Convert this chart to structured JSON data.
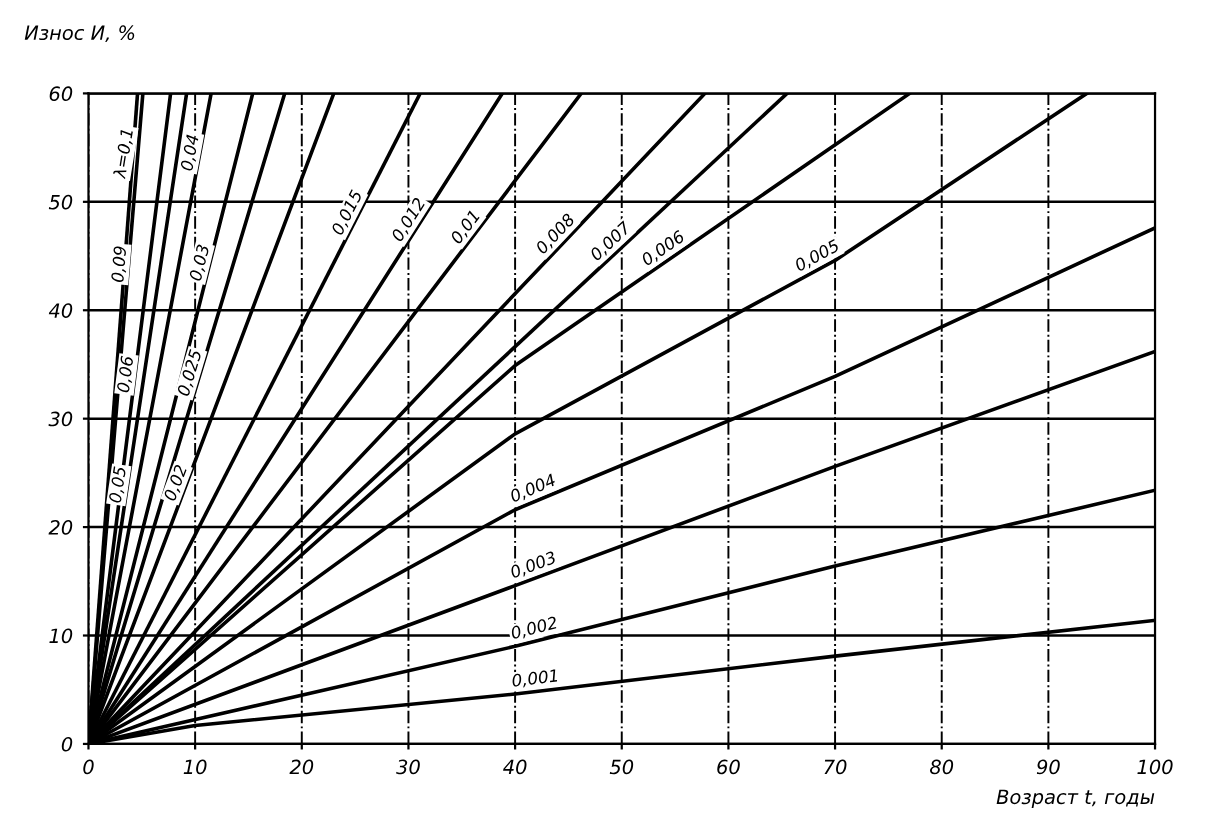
{
  "chart_data": {
    "type": "line",
    "xlabel": "Возраст t, годы",
    "ylabel": "Износ И, %",
    "xlim": [
      0,
      100
    ],
    "ylim": [
      0,
      60
    ],
    "xticks": [
      0,
      10,
      20,
      30,
      40,
      50,
      60,
      70,
      80,
      90,
      100
    ],
    "yticks": [
      0,
      10,
      20,
      30,
      40,
      50,
      60
    ],
    "grid": true,
    "legend": false,
    "marker": "none",
    "line_style": "solid",
    "series": [
      {
        "name": "λ=0,1",
        "color": "#000000",
        "x": [
          0,
          4.6
        ],
        "values": [
          0,
          60
        ]
      },
      {
        "name": "0,09",
        "color": "#000000",
        "x": [
          0,
          5.1
        ],
        "values": [
          0,
          60
        ]
      },
      {
        "name": "0,06",
        "color": "#000000",
        "x": [
          0,
          7.7
        ],
        "values": [
          0,
          60
        ]
      },
      {
        "name": "0,05",
        "color": "#000000",
        "x": [
          0,
          9.2
        ],
        "values": [
          0,
          60
        ]
      },
      {
        "name": "0,04",
        "color": "#000000",
        "x": [
          0,
          11.5
        ],
        "values": [
          0,
          60
        ]
      },
      {
        "name": "0,03",
        "color": "#000000",
        "x": [
          0,
          15.4
        ],
        "values": [
          0,
          60
        ]
      },
      {
        "name": "0,025",
        "color": "#000000",
        "x": [
          0,
          18.4
        ],
        "values": [
          0,
          60
        ]
      },
      {
        "name": "0,02",
        "color": "#000000",
        "x": [
          0,
          23
        ],
        "values": [
          0,
          60
        ]
      },
      {
        "name": "0,015",
        "color": "#000000",
        "x": [
          0,
          31.1
        ],
        "values": [
          0,
          60
        ]
      },
      {
        "name": "0,012",
        "color": "#000000",
        "x": [
          0,
          38.8
        ],
        "values": [
          0,
          60
        ]
      },
      {
        "name": "0,01",
        "color": "#000000",
        "x": [
          0,
          46.2
        ],
        "values": [
          0,
          60
        ]
      },
      {
        "name": "0,008",
        "color": "#000000",
        "x": [
          0,
          57.8
        ],
        "values": [
          0,
          60
        ]
      },
      {
        "name": "0,007",
        "color": "#000000",
        "x": [
          0,
          65.5
        ],
        "values": [
          0,
          60
        ]
      },
      {
        "name": "0,006",
        "color": "#000000",
        "x": [
          0,
          40,
          77
        ],
        "values": [
          0,
          34.9,
          60
        ]
      },
      {
        "name": "0,005",
        "color": "#000000",
        "x": [
          0,
          40,
          70,
          93.6
        ],
        "values": [
          0,
          28.6,
          44.6,
          60
        ]
      },
      {
        "name": "0,004",
        "color": "#000000",
        "x": [
          0,
          40,
          70,
          100
        ],
        "values": [
          0,
          21.6,
          33.9,
          47.6
        ]
      },
      {
        "name": "0,003",
        "color": "#000000",
        "x": [
          0,
          40,
          70,
          100
        ],
        "values": [
          0,
          14.6,
          25.6,
          36.2
        ]
      },
      {
        "name": "0,002",
        "color": "#000000",
        "x": [
          0,
          40,
          70,
          100
        ],
        "values": [
          0,
          9,
          16.4,
          23.4
        ]
      },
      {
        "name": "0,001",
        "color": "#000000",
        "x": [
          0,
          10,
          40,
          70,
          100
        ],
        "values": [
          0,
          1.7,
          4.6,
          8.1,
          11.4
        ]
      }
    ]
  }
}
